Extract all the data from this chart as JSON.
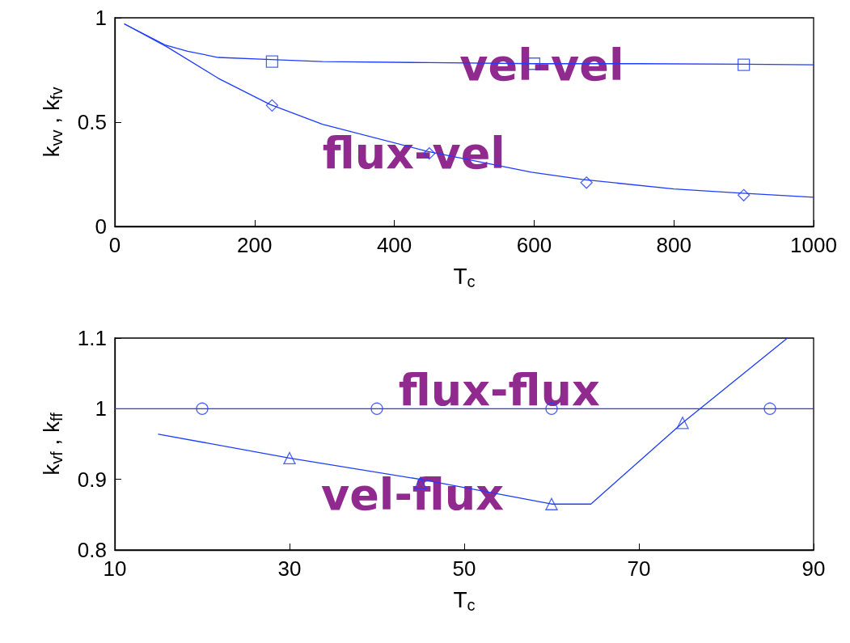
{
  "chart_data": [
    {
      "type": "line",
      "xlabel": "T$_{c}$",
      "ylabel": "k$_{vv}$ , k$_{fv}$",
      "xlim": [
        0,
        1000
      ],
      "xticks": [
        0,
        200,
        400,
        600,
        800,
        1000
      ],
      "ylim": [
        0,
        1
      ],
      "yticks": [
        0,
        0.5,
        1
      ],
      "grid": false,
      "series": [
        {
          "marker": "none",
          "color": "#1f3cff",
          "x": [
            14,
            72,
            104,
            148,
            223,
            297,
            450,
            600,
            750,
            900,
            1000
          ],
          "values": [
            0.97,
            0.87,
            0.84,
            0.81,
            0.8,
            0.79,
            0.785,
            0.78,
            0.78,
            0.778,
            0.775
          ]
        },
        {
          "type": "scatter",
          "marker": "square",
          "color": "#1f3cff",
          "x": [
            225,
            600,
            900
          ],
          "values": [
            0.79,
            0.78,
            0.775
          ]
        },
        {
          "marker": "none",
          "color": "#1f3cff",
          "x": [
            14,
            75,
            148,
            222,
            297,
            447,
            596,
            669,
            800,
            893,
            1000
          ],
          "values": [
            0.97,
            0.86,
            0.71,
            0.585,
            0.49,
            0.36,
            0.26,
            0.225,
            0.18,
            0.16,
            0.14
          ]
        },
        {
          "type": "scatter",
          "marker": "diamond",
          "color": "#1f3cff",
          "x": [
            225,
            450,
            675,
            900
          ],
          "values": [
            0.58,
            0.35,
            0.21,
            0.15
          ]
        }
      ],
      "annotations": [
        "vel-vel",
        "flux-vel"
      ]
    },
    {
      "type": "line",
      "xlabel": "T$_{c}$",
      "ylabel": "k$_{vf}$ , k$_{ff}$",
      "xlim": [
        10,
        90
      ],
      "xticks": [
        10,
        30,
        50,
        70,
        90
      ],
      "ylim": [
        0.8,
        1.1
      ],
      "yticks": [
        0.8,
        0.9,
        1,
        1.1
      ],
      "grid": false,
      "series": [
        {
          "marker": "none",
          "color": "#1f3cff",
          "x": [
            10,
            90
          ],
          "values": [
            1,
            1
          ]
        },
        {
          "type": "scatter",
          "marker": "circle",
          "color": "#1f3cff",
          "x": [
            20,
            40,
            60,
            85
          ],
          "values": [
            1,
            1,
            1,
            1
          ]
        },
        {
          "marker": "none",
          "color": "#1f3cff",
          "x": [
            15,
            30,
            45,
            60,
            64.5,
            75,
            87
          ],
          "values": [
            0.964,
            0.93,
            0.9,
            0.865,
            0.865,
            0.98,
            1.1
          ]
        },
        {
          "type": "scatter",
          "marker": "triangle",
          "color": "#1f3cff",
          "x": [
            30,
            45,
            60,
            75
          ],
          "values": [
            0.93,
            0.895,
            0.865,
            0.98
          ]
        }
      ],
      "annotations": [
        "flux-flux",
        "vel-flux"
      ]
    }
  ]
}
